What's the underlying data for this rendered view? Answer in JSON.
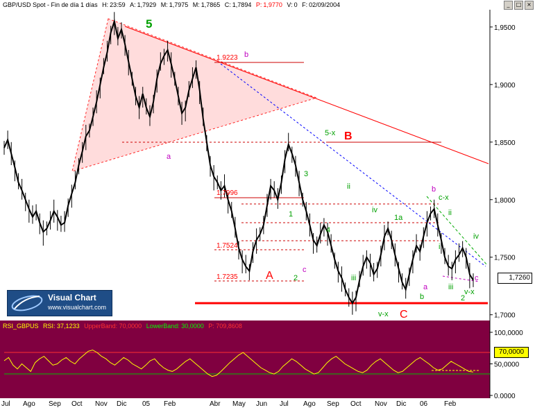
{
  "header": {
    "symbol": "GBP/USD Spot - Fin de día 1 días",
    "h_label": "H:",
    "h_value": "23:59",
    "a_label": "A:",
    "a_value": "1,7929",
    "m_label": "M:",
    "m_value": "1,7975",
    "mn_label": "M:",
    "mn_value": "1,7865",
    "c_label": "C:",
    "c_value": "1,7894",
    "p_label": "P:",
    "p_value": "1,9770",
    "v_label": "V:",
    "v_value": "0",
    "f_label": "F:",
    "f_value": "02/09/2004"
  },
  "logo": {
    "title": "Visual Chart",
    "url": "www.visualchart.com"
  },
  "price_tag": "1,7260",
  "rsi": {
    "name": "RSI_GBPUS",
    "value_label": "RSI: 37,1233",
    "upper": "UpperBand: 70,0000",
    "lower": "LowerBand: 30,0000",
    "p": "P: 709,8608",
    "tag": "70,0000"
  },
  "colors": {
    "rsi_bg": "#800040",
    "rsi_line": "#ffff00",
    "bar_color": "#000000",
    "red": "#ff0000",
    "green": "#008000",
    "magenta": "#c000c0"
  },
  "chart_data": [
    {
      "type": "line",
      "title": "GBP/USD Spot - Fin de día 1 días",
      "x_ticks": [
        "Jul",
        "Ago",
        "Sep",
        "Oct",
        "Nov",
        "Dic",
        "05",
        "Feb",
        "Abr",
        "May",
        "Jun",
        "Jul",
        "Ago",
        "Sep",
        "Oct",
        "Nov",
        "Dic",
        "06",
        "Feb"
      ],
      "y_ticks": [
        "1,9500",
        "1,9000",
        "1,8500",
        "1,8000",
        "1,7500",
        "1,7000"
      ],
      "ylim": [
        1.695,
        1.965
      ],
      "series": [
        {
          "values": [
            1.845,
            1.852,
            1.84,
            1.828,
            1.815,
            1.808,
            1.8,
            1.792,
            1.785,
            1.79,
            1.78,
            1.772,
            1.775,
            1.782,
            1.79,
            1.785,
            1.778,
            1.78,
            1.795,
            1.805,
            1.815,
            1.83,
            1.842,
            1.855,
            1.86,
            1.872,
            1.885,
            1.9,
            1.915,
            1.928,
            1.945,
            1.955,
            1.94,
            1.948,
            1.935,
            1.92,
            1.905,
            1.89,
            1.88,
            1.892,
            1.88,
            1.872,
            1.885,
            1.905,
            1.918,
            1.925,
            1.93,
            1.918,
            1.905,
            1.89,
            1.875,
            1.88,
            1.895,
            1.905,
            1.915,
            1.895,
            1.87,
            1.85,
            1.83,
            1.82,
            1.815,
            1.808,
            1.812,
            1.8,
            1.79,
            1.775,
            1.758,
            1.748,
            1.742,
            1.738,
            1.755,
            1.765,
            1.77,
            1.778,
            1.795,
            1.812,
            1.808,
            1.8,
            1.815,
            1.835,
            1.848,
            1.84,
            1.83,
            1.815,
            1.8,
            1.79,
            1.778,
            1.765,
            1.76,
            1.77,
            1.778,
            1.772,
            1.76,
            1.748,
            1.738,
            1.732,
            1.722,
            1.715,
            1.71,
            1.715,
            1.73,
            1.742,
            1.75,
            1.745,
            1.735,
            1.74,
            1.752,
            1.768,
            1.775,
            1.765,
            1.752,
            1.74,
            1.728,
            1.722,
            1.735,
            1.748,
            1.76,
            1.755,
            1.768,
            1.78,
            1.788,
            1.792,
            1.778,
            1.765,
            1.75,
            1.742,
            1.74,
            1.748,
            1.752,
            1.758,
            1.75,
            1.735,
            1.73
          ]
        }
      ],
      "annotations": [
        {
          "text": "5",
          "color": "green"
        },
        {
          "text": "b",
          "color": "magenta"
        },
        {
          "text": "1.9223",
          "color": "red"
        },
        {
          "text": "a",
          "color": "magenta"
        },
        {
          "text": "5-x",
          "color": "green"
        },
        {
          "text": "B",
          "color": "red"
        },
        {
          "text": "1.7996",
          "color": "red"
        },
        {
          "text": "3",
          "color": "green"
        },
        {
          "text": "ii",
          "color": "green"
        },
        {
          "text": "1",
          "color": "green"
        },
        {
          "text": "iv",
          "color": "green"
        },
        {
          "text": "1a",
          "color": "green"
        },
        {
          "text": "4",
          "color": "green"
        },
        {
          "text": "1.7524",
          "color": "red"
        },
        {
          "text": "A",
          "color": "red"
        },
        {
          "text": "1.7235",
          "color": "red"
        },
        {
          "text": "2",
          "color": "green"
        },
        {
          "text": "c",
          "color": "magenta"
        },
        {
          "text": "iii",
          "color": "green"
        },
        {
          "text": "v-x",
          "color": "green"
        },
        {
          "text": "C",
          "color": "red"
        },
        {
          "text": "b",
          "color": "magenta"
        },
        {
          "text": "c-x",
          "color": "green"
        },
        {
          "text": "ii",
          "color": "green"
        },
        {
          "text": "i",
          "color": "green"
        },
        {
          "text": "iv",
          "color": "green"
        },
        {
          "text": "a",
          "color": "magenta"
        },
        {
          "text": "b",
          "color": "green"
        },
        {
          "text": "iii",
          "color": "green"
        },
        {
          "text": "v-x",
          "color": "green"
        },
        {
          "text": "2",
          "color": "green"
        },
        {
          "text": "c",
          "color": "magenta"
        }
      ]
    },
    {
      "type": "line",
      "title": "RSI_GBPUS",
      "y_ticks": [
        "100,0000",
        "50,0000",
        "0,0000"
      ],
      "ylim": [
        0,
        100
      ],
      "bands": {
        "upper": 70,
        "lower": 30
      },
      "series": [
        {
          "name": "RSI",
          "values": [
            55,
            60,
            48,
            42,
            50,
            44,
            38,
            52,
            58,
            62,
            55,
            48,
            50,
            56,
            60,
            54,
            50,
            58,
            64,
            70,
            72,
            68,
            62,
            58,
            52,
            48,
            54,
            60,
            56,
            50,
            46,
            42,
            48,
            55,
            58,
            50,
            44,
            40,
            38,
            42,
            48,
            54,
            58,
            52,
            46,
            40,
            34,
            30,
            32,
            38,
            45,
            52,
            58,
            64,
            68,
            62,
            56,
            50,
            44,
            40,
            36,
            34,
            38,
            46,
            52,
            58,
            54,
            48,
            42,
            38,
            34,
            36,
            44,
            52,
            58,
            62,
            56,
            50,
            46,
            42,
            38,
            36,
            40,
            48,
            54,
            58,
            52,
            46,
            40,
            36,
            38,
            44,
            50,
            56,
            60,
            55,
            50,
            44,
            40,
            42,
            48,
            54,
            50,
            46,
            42,
            38,
            37
          ]
        }
      ]
    }
  ]
}
